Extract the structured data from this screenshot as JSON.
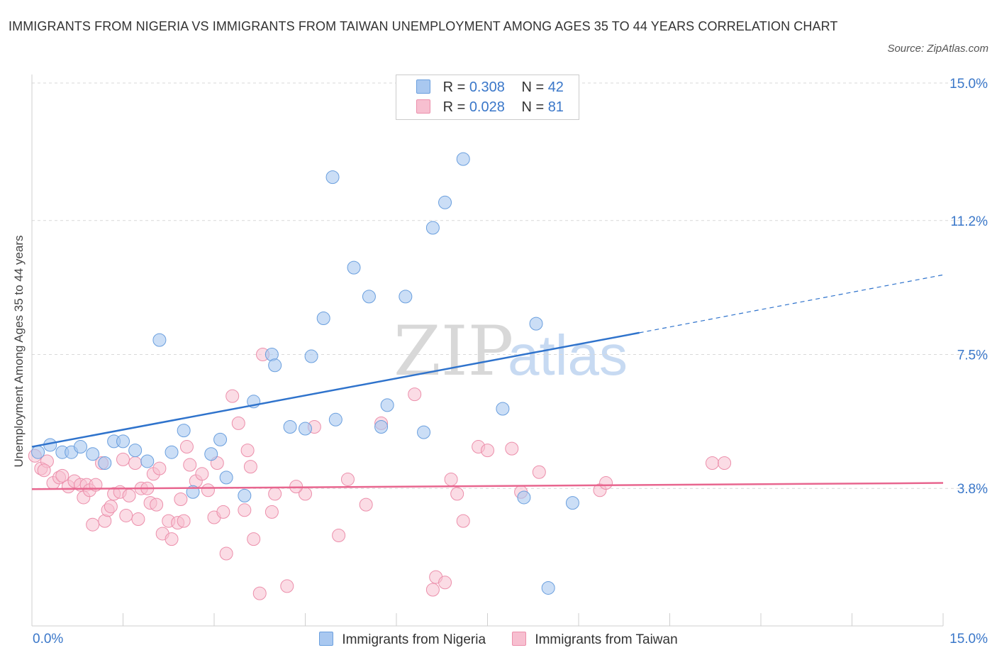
{
  "title": "IMMIGRANTS FROM NIGERIA VS IMMIGRANTS FROM TAIWAN UNEMPLOYMENT AMONG AGES 35 TO 44 YEARS CORRELATION CHART",
  "source": "Source: ZipAtlas.com",
  "watermark": {
    "zip": "ZIP",
    "atlas": "atlas"
  },
  "colors": {
    "nigeria_fill": "#a9c8f0",
    "nigeria_stroke": "#6a9fde",
    "nigeria_line": "#2f73cc",
    "taiwan_fill": "#f7bfd0",
    "taiwan_stroke": "#ec8fab",
    "taiwan_line": "#e8668f",
    "axis_text": "#3a77c9",
    "grid": "#d9d9d9"
  },
  "legend": {
    "nigeria": {
      "r_label": "R = ",
      "r_value": "0.308",
      "n_label": "N = ",
      "n_value": "42"
    },
    "taiwan": {
      "r_label": "R = ",
      "r_value": "0.028",
      "n_label": "N = ",
      "n_value": "81"
    }
  },
  "bottom_legend": {
    "nigeria": "Immigrants from Nigeria",
    "taiwan": "Immigrants from Taiwan"
  },
  "chart_data": {
    "type": "scatter",
    "title": "IMMIGRANTS FROM NIGERIA VS IMMIGRANTS FROM TAIWAN UNEMPLOYMENT AMONG AGES 35 TO 44 YEARS CORRELATION CHART",
    "xlabel": "",
    "ylabel": "Unemployment Among Ages 35 to 44 years",
    "xlim": [
      0,
      15
    ],
    "ylim": [
      0,
      15
    ],
    "x_tick_labels": [
      "0.0%",
      "15.0%"
    ],
    "y_ticks": [
      3.8,
      7.5,
      11.2,
      15.0
    ],
    "y_tick_labels": [
      "3.8%",
      "7.5%",
      "11.2%",
      "15.0%"
    ],
    "series": [
      {
        "name": "Immigrants from Nigeria",
        "R": 0.308,
        "N": 42,
        "trend": {
          "x0": 0,
          "y0": 4.95,
          "x1": 10,
          "y1": 8.1,
          "dash_to_x": 15,
          "dash_to_y": 9.7
        },
        "points": [
          [
            0.1,
            4.8
          ],
          [
            0.3,
            5.0
          ],
          [
            0.5,
            4.8
          ],
          [
            0.65,
            4.8
          ],
          [
            0.8,
            4.95
          ],
          [
            1.0,
            4.75
          ],
          [
            1.2,
            4.5
          ],
          [
            1.35,
            5.1
          ],
          [
            1.5,
            5.1
          ],
          [
            1.7,
            4.85
          ],
          [
            1.9,
            4.55
          ],
          [
            2.1,
            7.9
          ],
          [
            2.3,
            4.8
          ],
          [
            2.5,
            5.4
          ],
          [
            2.65,
            3.7
          ],
          [
            2.95,
            4.75
          ],
          [
            3.1,
            5.15
          ],
          [
            3.2,
            4.1
          ],
          [
            3.5,
            3.6
          ],
          [
            3.65,
            6.2
          ],
          [
            3.95,
            7.5
          ],
          [
            4.0,
            7.2
          ],
          [
            4.25,
            5.5
          ],
          [
            4.5,
            5.45
          ],
          [
            4.6,
            7.45
          ],
          [
            4.8,
            8.5
          ],
          [
            4.95,
            12.4
          ],
          [
            5.0,
            5.7
          ],
          [
            5.3,
            9.9
          ],
          [
            5.55,
            9.1
          ],
          [
            5.75,
            5.5
          ],
          [
            5.85,
            6.1
          ],
          [
            6.15,
            9.1
          ],
          [
            6.45,
            5.35
          ],
          [
            6.6,
            11.0
          ],
          [
            6.8,
            11.7
          ],
          [
            7.1,
            12.9
          ],
          [
            7.75,
            6.0
          ],
          [
            8.1,
            3.55
          ],
          [
            8.3,
            8.35
          ],
          [
            8.5,
            1.05
          ],
          [
            8.9,
            3.4
          ]
        ]
      },
      {
        "name": "Immigrants from Taiwan",
        "R": 0.028,
        "N": 81,
        "trend": {
          "x0": 0,
          "y0": 3.78,
          "x1": 15,
          "y1": 3.95
        },
        "points": [
          [
            0.05,
            4.7
          ],
          [
            0.15,
            4.35
          ],
          [
            0.25,
            4.55
          ],
          [
            0.35,
            3.95
          ],
          [
            0.45,
            4.1
          ],
          [
            0.5,
            4.15
          ],
          [
            0.6,
            3.85
          ],
          [
            0.7,
            4.0
          ],
          [
            0.8,
            3.9
          ],
          [
            0.85,
            3.55
          ],
          [
            0.9,
            3.9
          ],
          [
            0.95,
            3.75
          ],
          [
            1.0,
            2.8
          ],
          [
            1.05,
            3.9
          ],
          [
            1.15,
            4.5
          ],
          [
            1.2,
            2.9
          ],
          [
            1.25,
            3.2
          ],
          [
            1.3,
            3.3
          ],
          [
            1.35,
            3.65
          ],
          [
            1.45,
            3.7
          ],
          [
            1.5,
            4.6
          ],
          [
            1.55,
            3.05
          ],
          [
            1.6,
            3.6
          ],
          [
            1.7,
            4.5
          ],
          [
            1.75,
            2.95
          ],
          [
            1.8,
            3.8
          ],
          [
            1.9,
            3.8
          ],
          [
            1.95,
            3.4
          ],
          [
            2.0,
            4.2
          ],
          [
            2.05,
            3.35
          ],
          [
            2.1,
            4.35
          ],
          [
            2.15,
            2.55
          ],
          [
            2.25,
            2.9
          ],
          [
            2.3,
            2.4
          ],
          [
            2.4,
            2.85
          ],
          [
            2.45,
            3.5
          ],
          [
            2.5,
            2.9
          ],
          [
            2.55,
            4.95
          ],
          [
            2.6,
            4.45
          ],
          [
            2.7,
            4.0
          ],
          [
            2.8,
            4.2
          ],
          [
            2.9,
            3.75
          ],
          [
            3.0,
            3.0
          ],
          [
            3.05,
            4.5
          ],
          [
            3.15,
            3.15
          ],
          [
            3.2,
            2.0
          ],
          [
            3.3,
            6.35
          ],
          [
            3.4,
            5.6
          ],
          [
            3.5,
            3.2
          ],
          [
            3.55,
            4.85
          ],
          [
            3.6,
            4.4
          ],
          [
            3.65,
            2.4
          ],
          [
            3.75,
            0.9
          ],
          [
            3.8,
            7.5
          ],
          [
            3.95,
            3.15
          ],
          [
            4.0,
            3.65
          ],
          [
            4.2,
            1.1
          ],
          [
            4.5,
            3.65
          ],
          [
            4.65,
            5.5
          ],
          [
            5.05,
            2.5
          ],
          [
            5.2,
            4.05
          ],
          [
            5.5,
            3.35
          ],
          [
            5.75,
            5.6
          ],
          [
            6.3,
            6.4
          ],
          [
            6.6,
            1.0
          ],
          [
            6.65,
            1.35
          ],
          [
            6.8,
            1.2
          ],
          [
            6.9,
            4.05
          ],
          [
            7.0,
            3.65
          ],
          [
            7.1,
            2.9
          ],
          [
            7.35,
            4.95
          ],
          [
            7.5,
            4.85
          ],
          [
            7.9,
            4.9
          ],
          [
            8.05,
            3.7
          ],
          [
            8.35,
            4.25
          ],
          [
            9.35,
            3.75
          ],
          [
            9.45,
            3.95
          ],
          [
            11.2,
            4.5
          ],
          [
            11.4,
            4.5
          ],
          [
            0.2,
            4.3
          ],
          [
            4.35,
            3.85
          ]
        ]
      }
    ]
  }
}
